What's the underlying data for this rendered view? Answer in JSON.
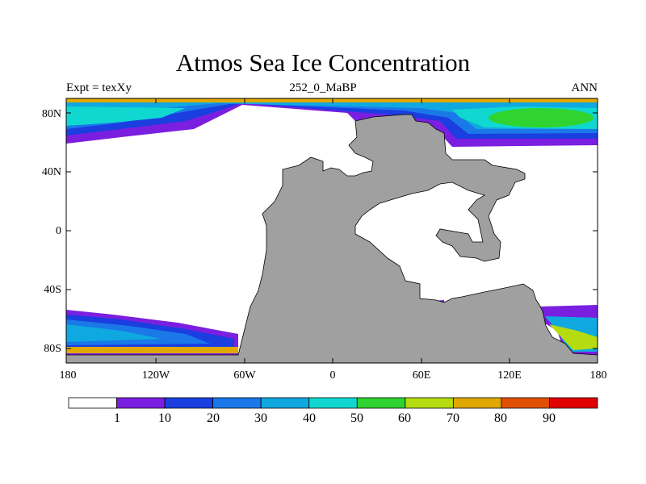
{
  "title": "Atmos Sea Ice Concentration",
  "subtitle_left": "Expt = texXy",
  "subtitle_center": "252_0_MaBP",
  "subtitle_right": "ANN",
  "lat_ticks": [
    "80N",
    "40N",
    "0",
    "40S",
    "80S"
  ],
  "lon_ticks": [
    "180",
    "120W",
    "60W",
    "0",
    "60E",
    "120E",
    "180"
  ],
  "colorbar": {
    "labels": [
      "1",
      "10",
      "20",
      "30",
      "40",
      "50",
      "60",
      "70",
      "80",
      "90"
    ],
    "colors": [
      "#ffffff",
      "#7a1fe0",
      "#1a3ee0",
      "#1a78e8",
      "#10a8e0",
      "#10d8d0",
      "#30d430",
      "#b4dc10",
      "#e0a800",
      "#e05000",
      "#e00000"
    ]
  },
  "colors": {
    "land": "#a0a0a0",
    "frame": "#000000"
  }
}
